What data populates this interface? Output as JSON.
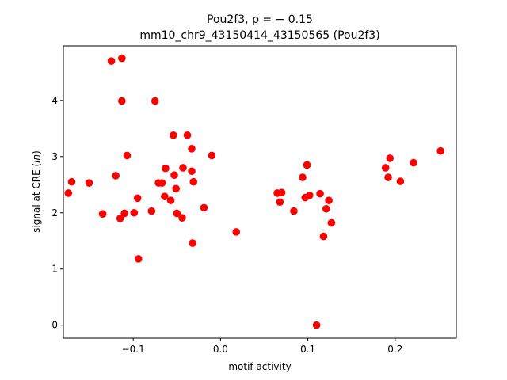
{
  "chart_data": {
    "type": "scatter",
    "title": "Pou2f3, ρ = − 0.15",
    "subtitle": "mm10_chr9_43150414_43150565 (Pou2f3)",
    "xlabel": "motif activity",
    "ylabel_prefix": "signal at CRE (",
    "ylabel_italic": "ln",
    "ylabel_suffix": ")",
    "xlim": [
      -0.18,
      0.27
    ],
    "ylim": [
      -0.23,
      4.97
    ],
    "xticks": [
      -0.1,
      0.0,
      0.1,
      0.2
    ],
    "xtick_labels": [
      "−0.1",
      "0.0",
      "0.1",
      "0.2"
    ],
    "yticks": [
      0,
      1,
      2,
      3,
      4
    ],
    "ytick_labels": [
      "0",
      "1",
      "2",
      "3",
      "4"
    ],
    "grid": false,
    "marker_color": "#ff0000",
    "points": [
      {
        "x": -0.1743,
        "y": 2.35
      },
      {
        "x": -0.1705,
        "y": 2.55
      },
      {
        "x": -0.1505,
        "y": 2.53
      },
      {
        "x": -0.135,
        "y": 1.98
      },
      {
        "x": -0.125,
        "y": 4.7
      },
      {
        "x": -0.12,
        "y": 2.66
      },
      {
        "x": -0.115,
        "y": 1.9
      },
      {
        "x": -0.113,
        "y": 4.75
      },
      {
        "x": -0.113,
        "y": 3.99
      },
      {
        "x": -0.11,
        "y": 1.99
      },
      {
        "x": -0.107,
        "y": 3.02
      },
      {
        "x": -0.099,
        "y": 2.0
      },
      {
        "x": -0.095,
        "y": 2.26
      },
      {
        "x": -0.094,
        "y": 1.18
      },
      {
        "x": -0.079,
        "y": 2.03
      },
      {
        "x": -0.075,
        "y": 3.99
      },
      {
        "x": -0.071,
        "y": 2.53
      },
      {
        "x": -0.067,
        "y": 2.53
      },
      {
        "x": -0.064,
        "y": 2.29
      },
      {
        "x": -0.063,
        "y": 2.79
      },
      {
        "x": -0.057,
        "y": 2.22
      },
      {
        "x": -0.054,
        "y": 3.38
      },
      {
        "x": -0.053,
        "y": 2.67
      },
      {
        "x": -0.051,
        "y": 2.43
      },
      {
        "x": -0.05,
        "y": 1.99
      },
      {
        "x": -0.044,
        "y": 1.91
      },
      {
        "x": -0.043,
        "y": 2.8
      },
      {
        "x": -0.038,
        "y": 3.38
      },
      {
        "x": -0.033,
        "y": 3.14
      },
      {
        "x": -0.033,
        "y": 2.74
      },
      {
        "x": -0.032,
        "y": 1.46
      },
      {
        "x": -0.031,
        "y": 2.55
      },
      {
        "x": -0.019,
        "y": 2.09
      },
      {
        "x": -0.01,
        "y": 3.02
      },
      {
        "x": 0.018,
        "y": 1.66
      },
      {
        "x": 0.065,
        "y": 2.35
      },
      {
        "x": 0.068,
        "y": 2.19
      },
      {
        "x": 0.07,
        "y": 2.36
      },
      {
        "x": 0.084,
        "y": 2.03
      },
      {
        "x": 0.094,
        "y": 2.63
      },
      {
        "x": 0.097,
        "y": 2.27
      },
      {
        "x": 0.099,
        "y": 2.85
      },
      {
        "x": 0.102,
        "y": 2.31
      },
      {
        "x": 0.11,
        "y": 0.0
      },
      {
        "x": 0.114,
        "y": 2.34
      },
      {
        "x": 0.118,
        "y": 1.58
      },
      {
        "x": 0.121,
        "y": 2.07
      },
      {
        "x": 0.124,
        "y": 2.22
      },
      {
        "x": 0.127,
        "y": 1.82
      },
      {
        "x": 0.189,
        "y": 2.8
      },
      {
        "x": 0.192,
        "y": 2.63
      },
      {
        "x": 0.194,
        "y": 2.97
      },
      {
        "x": 0.206,
        "y": 2.56
      },
      {
        "x": 0.221,
        "y": 2.89
      },
      {
        "x": 0.252,
        "y": 3.1
      }
    ]
  }
}
